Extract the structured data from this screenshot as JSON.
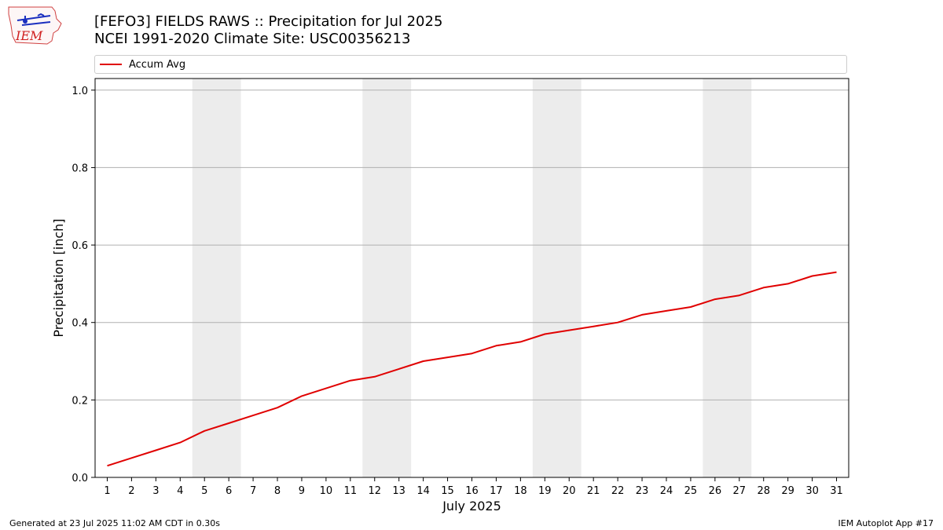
{
  "header": {
    "title_line1": "[FEFO3] FIELDS RAWS :: Precipitation for Jul 2025",
    "title_line2": "NCEI 1991-2020 Climate Site: USC00356213",
    "logo_text": "IEM"
  },
  "legend": {
    "label": "Accum Avg"
  },
  "footer": {
    "generated": "Generated at 23 Jul 2025 11:02 AM CDT in 0.30s",
    "app": "IEM Autoplot App #17"
  },
  "colors": {
    "line": "#e00000",
    "weekend_band": "#ececec",
    "grid": "#b0b0b0"
  },
  "chart_data": {
    "type": "line",
    "xlabel": "July 2025",
    "ylabel": "Precipitation [inch]",
    "x": [
      1,
      2,
      3,
      4,
      5,
      6,
      7,
      8,
      9,
      10,
      11,
      12,
      13,
      14,
      15,
      16,
      17,
      18,
      19,
      20,
      21,
      22,
      23,
      24,
      25,
      26,
      27,
      28,
      29,
      30,
      31
    ],
    "xlim": [
      0.5,
      31.5
    ],
    "ylim": [
      0,
      1.03
    ],
    "yticks": [
      0.0,
      0.2,
      0.4,
      0.6,
      0.8,
      1.0
    ],
    "ytick_labels": [
      "0.0",
      "0.2",
      "0.4",
      "0.6",
      "0.8",
      "1.0"
    ],
    "grid": "horizontal",
    "legend_position": "top",
    "shaded_days": [
      [
        5,
        6
      ],
      [
        12,
        13
      ],
      [
        19,
        20
      ],
      [
        26,
        27
      ]
    ],
    "series": [
      {
        "name": "Accum Avg",
        "color": "#e00000",
        "values": [
          0.03,
          0.05,
          0.07,
          0.09,
          0.12,
          0.14,
          0.16,
          0.18,
          0.21,
          0.23,
          0.25,
          0.26,
          0.28,
          0.3,
          0.31,
          0.32,
          0.34,
          0.35,
          0.37,
          0.38,
          0.39,
          0.4,
          0.42,
          0.43,
          0.44,
          0.46,
          0.47,
          0.49,
          0.5,
          0.52,
          0.53
        ]
      }
    ]
  }
}
